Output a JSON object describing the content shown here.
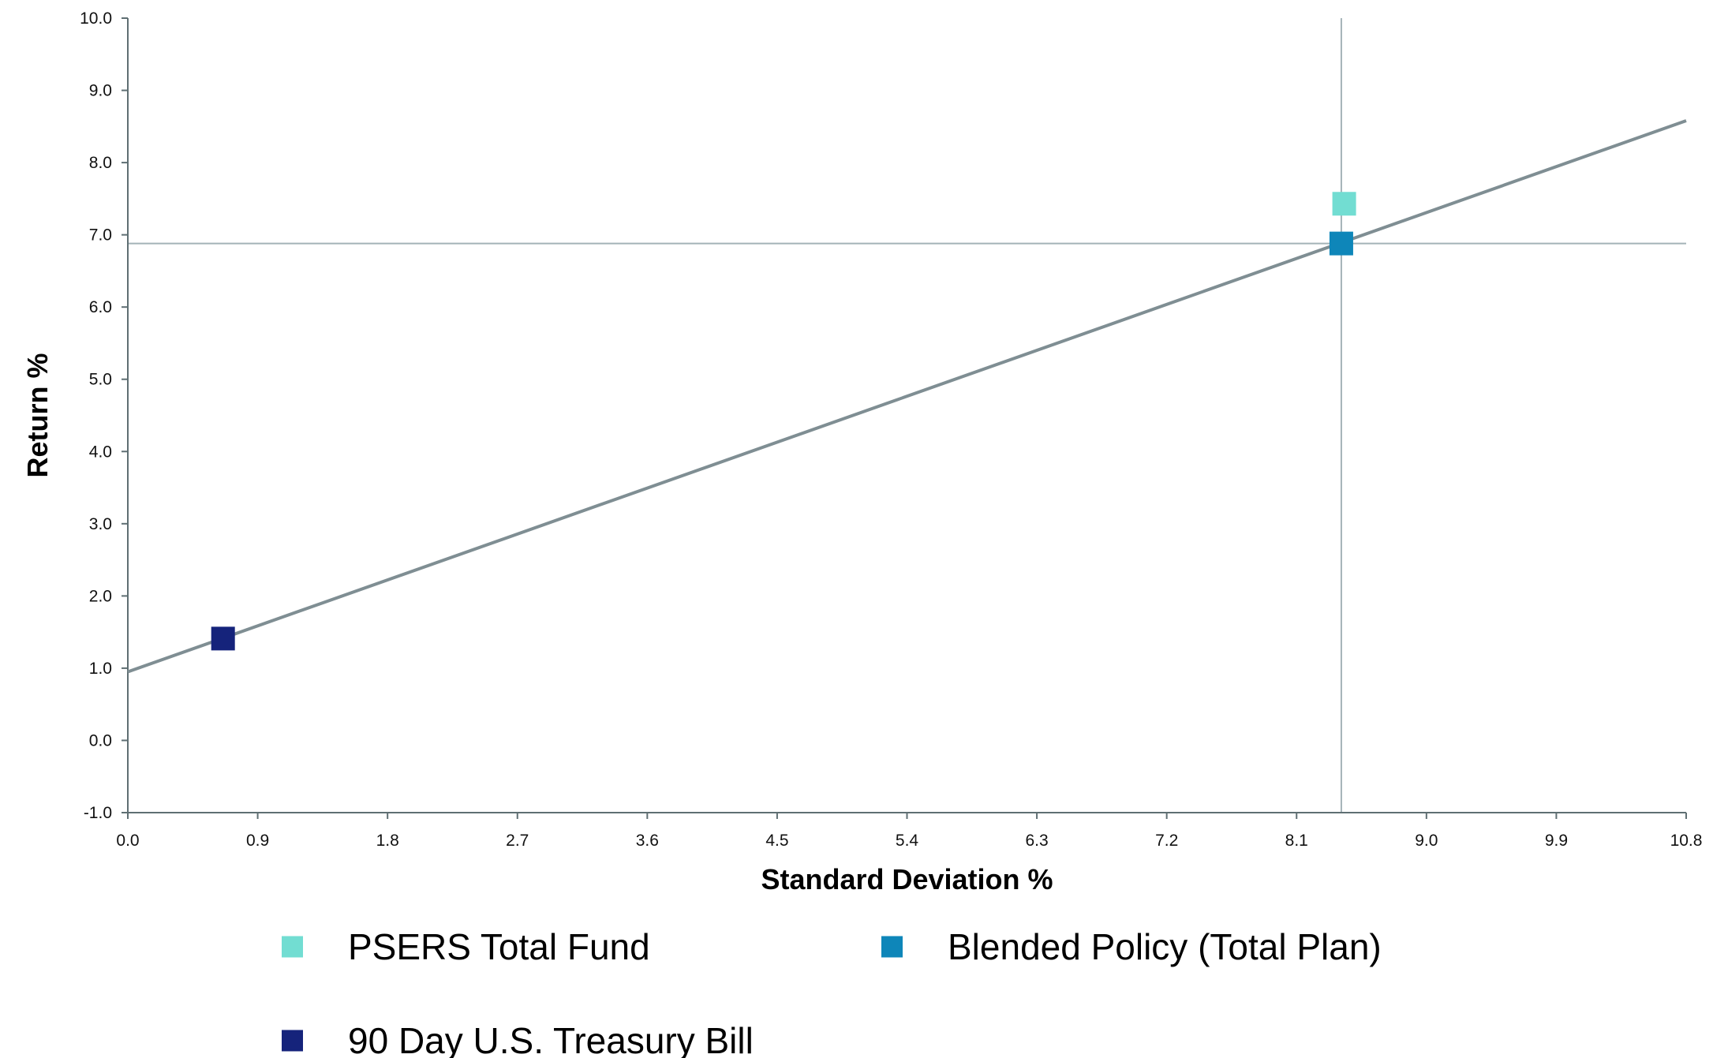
{
  "chart_data": {
    "type": "scatter",
    "xlabel": "Standard Deviation %",
    "ylabel": "Return %",
    "xlim": [
      0.0,
      10.8
    ],
    "ylim": [
      -1.0,
      10.0
    ],
    "x_ticks": [
      "0.0",
      "0.9",
      "1.8",
      "2.7",
      "3.6",
      "4.5",
      "5.4",
      "6.3",
      "7.2",
      "8.1",
      "9.0",
      "9.9",
      "10.8"
    ],
    "y_ticks": [
      "10.0",
      "9.0",
      "8.0",
      "7.0",
      "6.0",
      "5.0",
      "4.0",
      "3.0",
      "2.0",
      "1.0",
      "0.0",
      "-1.0"
    ],
    "grid": false,
    "legend_position": "bottom",
    "series": [
      {
        "name": "PSERS Total Fund",
        "x": 8.43,
        "y": 7.43,
        "color": "#72DDD2"
      },
      {
        "name": "Blended Policy (Total Plan)",
        "x": 8.41,
        "y": 6.88,
        "color": "#0E86B9"
      },
      {
        "name": "90 Day U.S. Treasury Bill",
        "x": 0.66,
        "y": 1.41,
        "color": "#15237B"
      }
    ],
    "capital_market_line": {
      "x": [
        0.0,
        10.8
      ],
      "y": [
        0.95,
        8.58
      ],
      "color": "#7F8E93"
    },
    "reference_lines": {
      "x": 8.41,
      "y": 6.88,
      "color": "#A4B3B8"
    }
  }
}
